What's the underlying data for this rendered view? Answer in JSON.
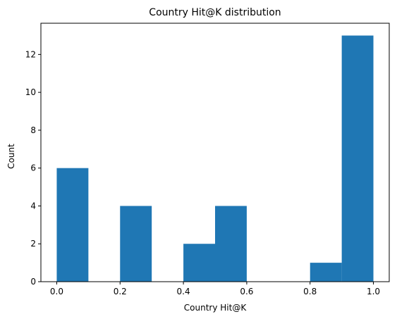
{
  "chart_data": {
    "type": "bar",
    "title": "Country Hit@K distribution",
    "xlabel": "Country Hit@K",
    "ylabel": "Count",
    "bins": [
      {
        "start": 0.0,
        "end": 0.1,
        "count": 6
      },
      {
        "start": 0.1,
        "end": 0.2,
        "count": 0
      },
      {
        "start": 0.2,
        "end": 0.3,
        "count": 4
      },
      {
        "start": 0.3,
        "end": 0.4,
        "count": 0
      },
      {
        "start": 0.4,
        "end": 0.5,
        "count": 2
      },
      {
        "start": 0.5,
        "end": 0.6,
        "count": 4
      },
      {
        "start": 0.6,
        "end": 0.7,
        "count": 0
      },
      {
        "start": 0.7,
        "end": 0.8,
        "count": 0
      },
      {
        "start": 0.8,
        "end": 0.9,
        "count": 1
      },
      {
        "start": 0.9,
        "end": 1.0,
        "count": 13
      }
    ],
    "xlim": [
      -0.05,
      1.05
    ],
    "ylim": [
      0,
      13.65
    ],
    "xticks": [
      "0.0",
      "0.2",
      "0.4",
      "0.6",
      "0.8",
      "1.0"
    ],
    "yticks": [
      "0",
      "2",
      "4",
      "6",
      "8",
      "10",
      "12"
    ],
    "bar_color": "#1f77b4",
    "grid": false,
    "legend": "none"
  }
}
